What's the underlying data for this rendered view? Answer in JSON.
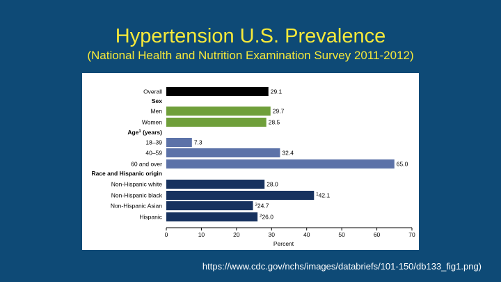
{
  "slide": {
    "title": "Hypertension U.S. Prevalence",
    "subtitle": "(National Health and Nutrition Examination Survey 2011-2012)",
    "source": "https://www.cdc.gov/nchs/images/databriefs/101-150/db133_fig1.png)"
  },
  "colors": {
    "overall": "#000000",
    "sex": "#6f9f3a",
    "age": "#5c72a8",
    "race": "#17325f",
    "background": "#0e4a76",
    "title": "#f6e93a"
  },
  "chart_data": {
    "type": "bar",
    "orientation": "horizontal",
    "title": "",
    "xlabel": "Percent",
    "ylabel": "",
    "xlim": [
      0,
      70
    ],
    "xticks": [
      "0",
      "10",
      "20",
      "30",
      "40",
      "50",
      "60",
      "70"
    ],
    "grid": false,
    "headers": [
      {
        "text": "Sex",
        "before": "Men"
      },
      {
        "text": "Age",
        "sup": "1",
        "suffix": " (years)",
        "before": "18–39"
      },
      {
        "text": "Race and Hispanic origin",
        "before": "Non-Hispanic white"
      }
    ],
    "bars": [
      {
        "category": "Overall",
        "value": 29.1,
        "label": "29.1",
        "note": "",
        "group": "overall"
      },
      {
        "category": "Men",
        "value": 29.7,
        "label": "29.7",
        "note": "",
        "group": "sex"
      },
      {
        "category": "Women",
        "value": 28.5,
        "label": "28.5",
        "note": "",
        "group": "sex"
      },
      {
        "category": "18–39",
        "value": 7.3,
        "label": "7.3",
        "note": "",
        "group": "age"
      },
      {
        "category": "40–59",
        "value": 32.4,
        "label": "32.4",
        "note": "",
        "group": "age"
      },
      {
        "category": "60 and over",
        "value": 65.0,
        "label": "65.0",
        "note": "",
        "group": "age"
      },
      {
        "category": "Non-Hispanic white",
        "value": 28.0,
        "label": "28.0",
        "note": "",
        "group": "race"
      },
      {
        "category": "Non-Hispanic black",
        "value": 42.1,
        "label": "42.1",
        "note": "1",
        "group": "race"
      },
      {
        "category": "Non-Hispanic Asian",
        "value": 24.7,
        "label": "24.7",
        "note": "2",
        "group": "race"
      },
      {
        "category": "Hispanic",
        "value": 26.0,
        "label": "26.0",
        "note": "2",
        "group": "race"
      }
    ]
  }
}
